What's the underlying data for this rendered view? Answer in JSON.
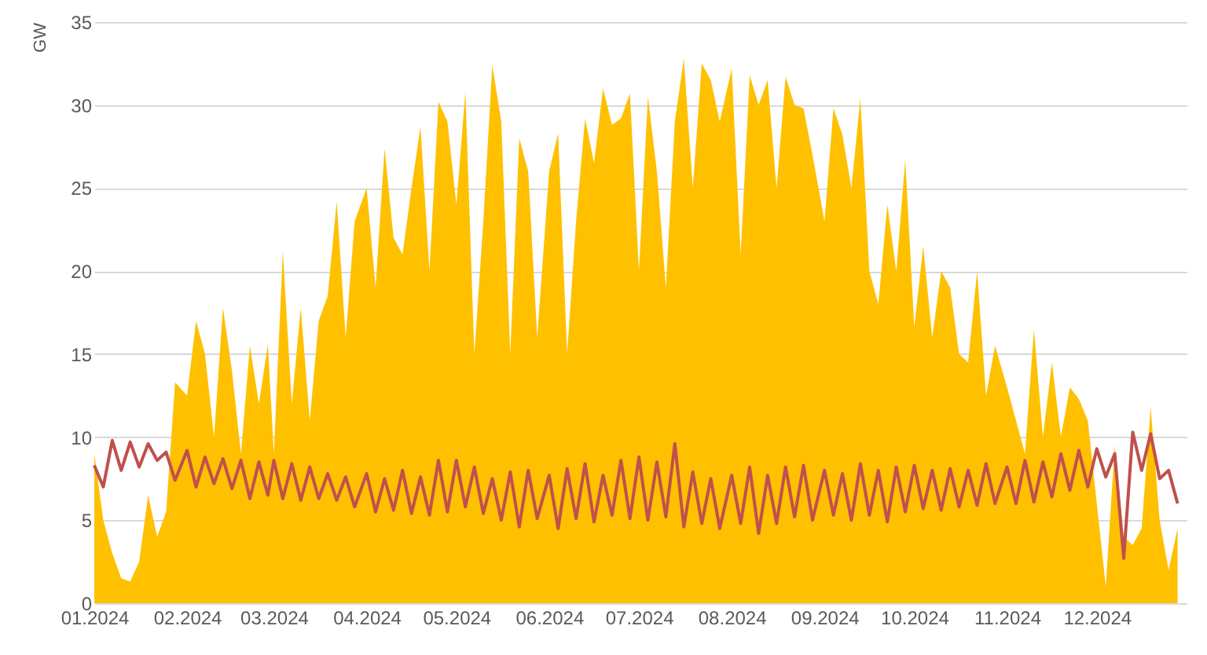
{
  "chart_data": {
    "type": "line",
    "ylabel": "GW",
    "x": [
      "2024-01-01",
      "2024-01-04",
      "2024-01-07",
      "2024-01-10",
      "2024-01-13",
      "2024-01-16",
      "2024-01-19",
      "2024-01-22",
      "2024-01-25",
      "2024-01-28",
      "2024-02-01",
      "2024-02-04",
      "2024-02-07",
      "2024-02-10",
      "2024-02-13",
      "2024-02-16",
      "2024-02-19",
      "2024-02-22",
      "2024-02-25",
      "2024-02-28",
      "2024-03-01",
      "2024-03-04",
      "2024-03-07",
      "2024-03-10",
      "2024-03-13",
      "2024-03-16",
      "2024-03-19",
      "2024-03-22",
      "2024-03-25",
      "2024-03-28",
      "2024-04-01",
      "2024-04-04",
      "2024-04-07",
      "2024-04-10",
      "2024-04-13",
      "2024-04-16",
      "2024-04-19",
      "2024-04-22",
      "2024-04-25",
      "2024-04-28",
      "2024-05-01",
      "2024-05-04",
      "2024-05-07",
      "2024-05-10",
      "2024-05-13",
      "2024-05-16",
      "2024-05-19",
      "2024-05-22",
      "2024-05-25",
      "2024-05-28",
      "2024-06-01",
      "2024-06-04",
      "2024-06-07",
      "2024-06-10",
      "2024-06-13",
      "2024-06-16",
      "2024-06-19",
      "2024-06-22",
      "2024-06-25",
      "2024-06-28",
      "2024-07-01",
      "2024-07-04",
      "2024-07-07",
      "2024-07-10",
      "2024-07-13",
      "2024-07-16",
      "2024-07-19",
      "2024-07-22",
      "2024-07-25",
      "2024-07-28",
      "2024-08-01",
      "2024-08-04",
      "2024-08-07",
      "2024-08-10",
      "2024-08-13",
      "2024-08-16",
      "2024-08-19",
      "2024-08-22",
      "2024-08-25",
      "2024-08-28",
      "2024-09-01",
      "2024-09-04",
      "2024-09-07",
      "2024-09-10",
      "2024-09-13",
      "2024-09-16",
      "2024-09-19",
      "2024-09-22",
      "2024-09-25",
      "2024-09-28",
      "2024-10-01",
      "2024-10-04",
      "2024-10-07",
      "2024-10-10",
      "2024-10-13",
      "2024-10-16",
      "2024-10-19",
      "2024-10-22",
      "2024-10-25",
      "2024-10-28",
      "2024-11-01",
      "2024-11-04",
      "2024-11-07",
      "2024-11-10",
      "2024-11-13",
      "2024-11-16",
      "2024-11-19",
      "2024-11-22",
      "2024-11-25",
      "2024-11-28",
      "2024-12-01",
      "2024-12-04",
      "2024-12-07",
      "2024-12-10",
      "2024-12-13",
      "2024-12-16",
      "2024-12-19",
      "2024-12-22",
      "2024-12-25",
      "2024-12-28"
    ],
    "series": [
      {
        "type": "area",
        "color": "#ffc000",
        "values": [
          9,
          5,
          3,
          1.5,
          1.3,
          2.5,
          6.5,
          4,
          5.5,
          13.3,
          12.5,
          17,
          15,
          10,
          17.8,
          14,
          9,
          15.5,
          12,
          15.6,
          9,
          21.2,
          12,
          17.8,
          11,
          17,
          18.5,
          24.2,
          16,
          23,
          25,
          19,
          27.4,
          22,
          21,
          25,
          28.7,
          20,
          30.2,
          29,
          24,
          30.8,
          15,
          23,
          32.4,
          29,
          15,
          28,
          26,
          16,
          26,
          28.3,
          15,
          23,
          29.2,
          26.5,
          31,
          28.8,
          29.2,
          30.7,
          20,
          30.5,
          26,
          19,
          29,
          32.8,
          25,
          32.5,
          31.5,
          29,
          32.2,
          21,
          31.8,
          30,
          31.5,
          25,
          31.7,
          30,
          29.8,
          27,
          23,
          29.8,
          28.2,
          25,
          30.4,
          20,
          18,
          24,
          20,
          26.7,
          16.6,
          21.5,
          16,
          20,
          19,
          15,
          14.5,
          20,
          12.5,
          15.5,
          13,
          11,
          9,
          16.5,
          10,
          14.5,
          10,
          13,
          12.3,
          11,
          6,
          1,
          9.5,
          4,
          3.5,
          4.5,
          11.8,
          5,
          2,
          4.5
        ]
      },
      {
        "color": "#c0504d",
        "values": [
          8.3,
          7,
          9.8,
          8,
          9.7,
          8.2,
          9.6,
          8.6,
          9.1,
          7.4,
          9.2,
          7,
          8.8,
          7.2,
          8.7,
          6.9,
          8.6,
          6.3,
          8.5,
          6.5,
          8.6,
          6.3,
          8.4,
          6.2,
          8.2,
          6.3,
          7.8,
          6.2,
          7.6,
          5.8,
          7.8,
          5.5,
          7.5,
          5.6,
          8,
          5.4,
          7.6,
          5.3,
          8.6,
          5.5,
          8.6,
          5.8,
          8.2,
          5.4,
          7.5,
          5,
          7.9,
          4.6,
          8,
          5.1,
          7.7,
          4.5,
          8.1,
          5.1,
          8.4,
          4.9,
          7.7,
          5.3,
          8.6,
          5.1,
          8.8,
          5,
          8.5,
          5.2,
          9.6,
          4.6,
          7.9,
          4.8,
          7.5,
          4.5,
          7.7,
          4.8,
          8.2,
          4.2,
          7.7,
          4.8,
          8.2,
          5.2,
          8.3,
          5,
          8,
          5.3,
          7.8,
          5,
          8.4,
          5.3,
          8,
          4.9,
          8.2,
          5.5,
          8.3,
          5.7,
          8,
          5.6,
          8.1,
          5.8,
          8,
          5.9,
          8.4,
          6,
          8.2,
          6,
          8.6,
          6.1,
          8.5,
          6.4,
          9,
          6.8,
          9.2,
          7,
          9.3,
          7.6,
          9,
          2.7,
          10.3,
          8,
          10.2,
          7.5,
          8,
          6
        ]
      }
    ],
    "xlim": [
      "2024-01-01",
      "2024-12-31"
    ],
    "xticks": [
      {
        "value": "2024-01-01",
        "label": "01.2024"
      },
      {
        "value": "2024-02-01",
        "label": "02.2024"
      },
      {
        "value": "2024-03-01",
        "label": "03.2024"
      },
      {
        "value": "2024-04-01",
        "label": "04.2024"
      },
      {
        "value": "2024-05-01",
        "label": "05.2024"
      },
      {
        "value": "2024-06-01",
        "label": "06.2024"
      },
      {
        "value": "2024-07-01",
        "label": "07.2024"
      },
      {
        "value": "2024-08-01",
        "label": "08.2024"
      },
      {
        "value": "2024-09-01",
        "label": "09.2024"
      },
      {
        "value": "2024-10-01",
        "label": "10.2024"
      },
      {
        "value": "2024-11-01",
        "label": "11.2024"
      },
      {
        "value": "2024-12-01",
        "label": "12.2024"
      }
    ],
    "ylim": [
      0,
      35
    ],
    "yticks": [
      0,
      5,
      10,
      15,
      20,
      25,
      30,
      35
    ],
    "grid": "y",
    "marker": "none",
    "line_style": "solid"
  }
}
